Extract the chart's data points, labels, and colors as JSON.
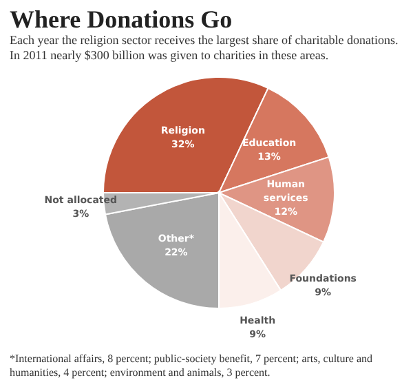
{
  "chart_data": {
    "type": "pie",
    "title": "Where Donations Go",
    "subtitle": "Each year the religion sector receives the largest share of charitable donations. In 2011 nearly $300 billion was given to charities in these areas.",
    "categories": [
      "Religion",
      "Education",
      "Human services",
      "Foundations",
      "Health",
      "Other*",
      "Not allocated"
    ],
    "values": [
      32,
      13,
      12,
      9,
      9,
      22,
      3
    ],
    "value_labels": [
      "32%",
      "13%",
      "12%",
      "9%",
      "9%",
      "22%",
      "3%"
    ],
    "colors": [
      "#c2563b",
      "#d6775f",
      "#df9584",
      "#f1d5cd",
      "#fbefeb",
      "#a9a9a9",
      "#b3b3b3"
    ],
    "annotations": [
      "*International affairs, 8 percent; public-society benefit, 7 percent;  arts, culture and humanities, 4 percent; environment and animals, 3 percent."
    ]
  }
}
